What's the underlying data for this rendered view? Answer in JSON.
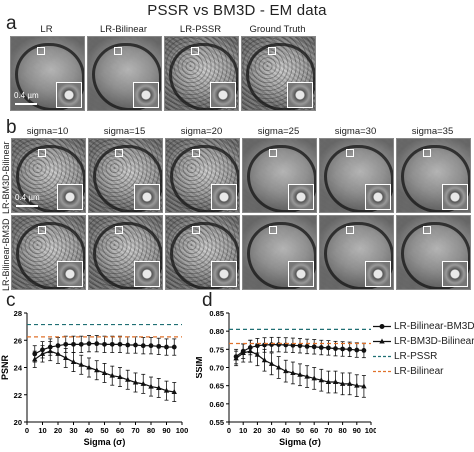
{
  "figure": {
    "title": "PSSR vs BM3D - EM data",
    "panel_a": {
      "label": "a",
      "columns": [
        "LR",
        "LR-Bilinear",
        "LR-PSSR",
        "Ground Truth"
      ],
      "scale_bar": "0.4 µm"
    },
    "panel_b": {
      "label": "b",
      "columns": [
        "sigma=10",
        "sigma=15",
        "sigma=20",
        "sigma=25",
        "sigma=30",
        "sigma=35"
      ],
      "rows": [
        "LR-BM3D-Bilinear",
        "LR-Bilinear-BM3D"
      ],
      "scale_bar": "0.4 µm"
    },
    "panel_c": {
      "label": "c"
    },
    "panel_d": {
      "label": "d"
    },
    "legend": [
      {
        "label": "LR-Bilinear-BM3D",
        "marker": "circle",
        "style": "solid",
        "color": "#111111"
      },
      {
        "label": "LR-BM3D-Bilinear",
        "marker": "triangle",
        "style": "solid",
        "color": "#111111"
      },
      {
        "label": "LR-PSSR",
        "marker": "none",
        "style": "dashed",
        "color": "#1f6f73"
      },
      {
        "label": "LR-Bilinear",
        "marker": "none",
        "style": "dashed",
        "color": "#e0722b"
      }
    ]
  },
  "chart_data": [
    {
      "type": "line",
      "panel": "c",
      "xlabel": "Sigma (σ)",
      "ylabel": "PSNR",
      "xlim": [
        0,
        100
      ],
      "ylim": [
        20,
        28
      ],
      "xticks": [
        0,
        10,
        20,
        30,
        40,
        50,
        60,
        70,
        80,
        90,
        100
      ],
      "yticks": [
        20,
        22,
        24,
        26,
        28
      ],
      "grid": false,
      "x": [
        5,
        10,
        15,
        20,
        25,
        30,
        35,
        40,
        45,
        50,
        55,
        60,
        65,
        70,
        75,
        80,
        85,
        90,
        95
      ],
      "series": [
        {
          "name": "LR-Bilinear-BM3D",
          "marker": "circle",
          "values": [
            25.0,
            25.3,
            25.5,
            25.6,
            25.7,
            25.7,
            25.7,
            25.75,
            25.75,
            25.7,
            25.7,
            25.7,
            25.65,
            25.65,
            25.6,
            25.6,
            25.55,
            25.5,
            25.5
          ],
          "err": [
            0.6,
            0.6,
            0.6,
            0.6,
            0.6,
            0.6,
            0.6,
            0.6,
            0.6,
            0.6,
            0.6,
            0.6,
            0.6,
            0.6,
            0.6,
            0.6,
            0.6,
            0.6,
            0.6
          ]
        },
        {
          "name": "LR-BM3D-Bilinear",
          "marker": "triangle",
          "values": [
            24.6,
            25.0,
            25.2,
            25.0,
            24.7,
            24.4,
            24.2,
            24.0,
            23.8,
            23.6,
            23.4,
            23.3,
            23.1,
            22.9,
            22.8,
            22.6,
            22.5,
            22.3,
            22.2
          ],
          "err": [
            0.6,
            0.6,
            0.7,
            0.7,
            0.7,
            0.7,
            0.7,
            0.7,
            0.7,
            0.7,
            0.7,
            0.7,
            0.7,
            0.7,
            0.7,
            0.7,
            0.7,
            0.7,
            0.7
          ]
        },
        {
          "name": "LR-PSSR",
          "constant": 27.15
        },
        {
          "name": "LR-Bilinear",
          "constant": 26.25
        }
      ]
    },
    {
      "type": "line",
      "panel": "d",
      "xlabel": "Sigma (σ)",
      "ylabel": "SSIM",
      "xlim": [
        0,
        100
      ],
      "ylim": [
        0.55,
        0.85
      ],
      "xticks": [
        0,
        10,
        20,
        30,
        40,
        50,
        60,
        70,
        80,
        90,
        100
      ],
      "yticks": [
        0.55,
        0.6,
        0.65,
        0.7,
        0.75,
        0.8,
        0.85
      ],
      "ytick_labels": [
        "0.55",
        "0.60",
        "0.65",
        "0.70",
        "0.75",
        "0.80",
        "0.85"
      ],
      "grid": false,
      "x": [
        5,
        10,
        15,
        20,
        25,
        30,
        35,
        40,
        45,
        50,
        55,
        60,
        65,
        70,
        75,
        80,
        85,
        90,
        95
      ],
      "series": [
        {
          "name": "LR-Bilinear-BM3D",
          "marker": "circle",
          "values": [
            0.73,
            0.745,
            0.755,
            0.76,
            0.762,
            0.763,
            0.763,
            0.762,
            0.761,
            0.76,
            0.758,
            0.757,
            0.755,
            0.754,
            0.752,
            0.751,
            0.75,
            0.748,
            0.747
          ],
          "err": [
            0.02,
            0.02,
            0.02,
            0.02,
            0.02,
            0.02,
            0.02,
            0.02,
            0.02,
            0.02,
            0.02,
            0.02,
            0.02,
            0.02,
            0.02,
            0.02,
            0.02,
            0.02,
            0.02
          ]
        },
        {
          "name": "LR-BM3D-Bilinear",
          "marker": "triangle",
          "values": [
            0.725,
            0.74,
            0.745,
            0.735,
            0.72,
            0.71,
            0.7,
            0.69,
            0.685,
            0.68,
            0.675,
            0.67,
            0.665,
            0.66,
            0.66,
            0.655,
            0.655,
            0.65,
            0.648
          ],
          "err": [
            0.02,
            0.025,
            0.03,
            0.03,
            0.03,
            0.03,
            0.03,
            0.03,
            0.03,
            0.03,
            0.03,
            0.03,
            0.03,
            0.03,
            0.03,
            0.03,
            0.03,
            0.03,
            0.03
          ]
        },
        {
          "name": "LR-PSSR",
          "constant": 0.805
        },
        {
          "name": "LR-Bilinear",
          "constant": 0.766
        }
      ]
    }
  ]
}
